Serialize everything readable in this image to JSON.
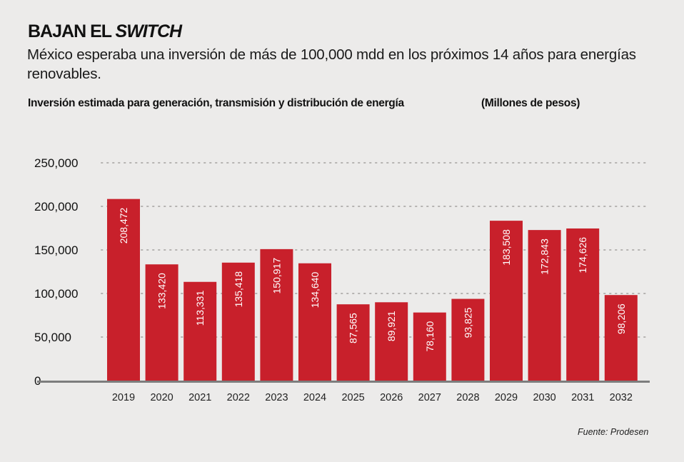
{
  "header": {
    "title_main": "BAJAN EL ",
    "title_emphasis": "SWITCH",
    "subtitle": "México esperaba una inversión de más de 100,000 mdd en los próximos 14 años para energías renovables.",
    "chart_label": "Inversión estimada para generación, transmisión y distribución de energía",
    "unit_label": "(Millones de pesos)"
  },
  "footer": {
    "source": "Fuente: Prodesen"
  },
  "colors": {
    "bar": "#c8202b",
    "background": "#ecebea",
    "gridline": "#b5b3b1",
    "axis": "#7d7d7d"
  },
  "chart_data": {
    "type": "bar",
    "title": "Inversión estimada para generación, transmisión y distribución de energía",
    "xlabel": "",
    "ylabel": "Millones de pesos",
    "categories": [
      "2019",
      "2020",
      "2021",
      "2022",
      "2023",
      "2024",
      "2025",
      "2026",
      "2027",
      "2028",
      "2029",
      "2030",
      "2031",
      "2032"
    ],
    "values": [
      208472,
      133420,
      113331,
      135418,
      150917,
      134640,
      87565,
      89921,
      78160,
      93825,
      183508,
      172843,
      174626,
      98206
    ],
    "value_labels": [
      "208,472",
      "133,420",
      "113,331",
      "135,418",
      "150,917",
      "134,640",
      "87,565",
      "89,921",
      "78,160",
      "93,825",
      "183,508",
      "172,843",
      "174,626",
      "98,206"
    ],
    "yticks": [
      0,
      50000,
      100000,
      150000,
      200000,
      250000
    ],
    "ytick_labels": [
      "0",
      "50,000",
      "100,000",
      "150,000",
      "200,000",
      "250,000"
    ],
    "ylim": [
      0,
      250000
    ],
    "grid": true,
    "grid_style": "dotted",
    "legend": "none",
    "data_label_orientation": "vertical-inside"
  }
}
